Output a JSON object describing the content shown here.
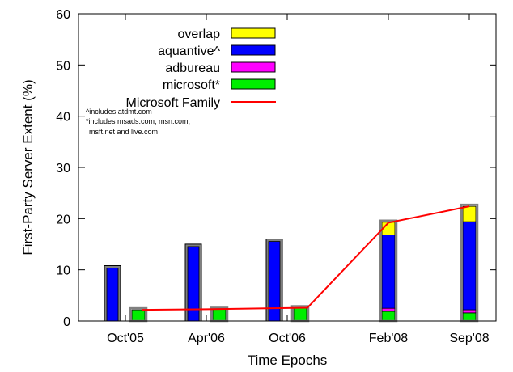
{
  "chart_data": {
    "type": "bar",
    "xlabel": "Time Epochs",
    "ylabel": "First-Party Server Extent (%)",
    "ylim": [
      0,
      60
    ],
    "yticks": [
      0,
      10,
      20,
      30,
      40,
      50,
      60
    ],
    "categories": [
      "Oct'05",
      "Apr'06",
      "Oct'06",
      "Feb'08",
      "Sep'08"
    ],
    "bar_groups": [
      {
        "category": "Oct'05",
        "aquantive_bar": {
          "aquantive": 10.5
        },
        "microsoft_bar": {
          "microsoft": 2.2,
          "adbureau": 0,
          "aquantive": 0,
          "overlap": 0
        }
      },
      {
        "category": "Apr'06",
        "aquantive_bar": {
          "aquantive": 14.7
        },
        "microsoft_bar": {
          "microsoft": 2.3,
          "adbureau": 0,
          "aquantive": 0,
          "overlap": 0
        }
      },
      {
        "category": "Oct'06",
        "aquantive_bar": {
          "aquantive": 15.7
        },
        "microsoft_bar": {
          "microsoft": 2.6,
          "adbureau": 0,
          "aquantive": 0,
          "overlap": 0
        }
      },
      {
        "category": "Feb'08",
        "aquantive_bar": null,
        "microsoft_bar": {
          "microsoft": 1.9,
          "adbureau": 0.6,
          "aquantive": 14.3,
          "overlap": 2.5
        }
      },
      {
        "category": "Sep'08",
        "aquantive_bar": null,
        "microsoft_bar": {
          "microsoft": 1.6,
          "adbureau": 0.6,
          "aquantive": 17.2,
          "overlap": 3.0
        }
      }
    ],
    "series": [
      {
        "name": "overlap",
        "color": "#ffff00"
      },
      {
        "name": "aquantive^",
        "color": "#0000ff"
      },
      {
        "name": "adbureau",
        "color": "#ff00ff"
      },
      {
        "name": "microsoft*",
        "color": "#00ee00"
      },
      {
        "name": "Microsoft Family",
        "color": "#ff0000",
        "kind": "line",
        "values": [
          2.2,
          2.3,
          2.6,
          19.2,
          22.4
        ]
      }
    ],
    "notes": [
      "^includes atdmt.com",
      "*includes msads.com, msn.com,",
      "msft.net and live.com"
    ],
    "legend_position": "top-left",
    "grid": false
  }
}
